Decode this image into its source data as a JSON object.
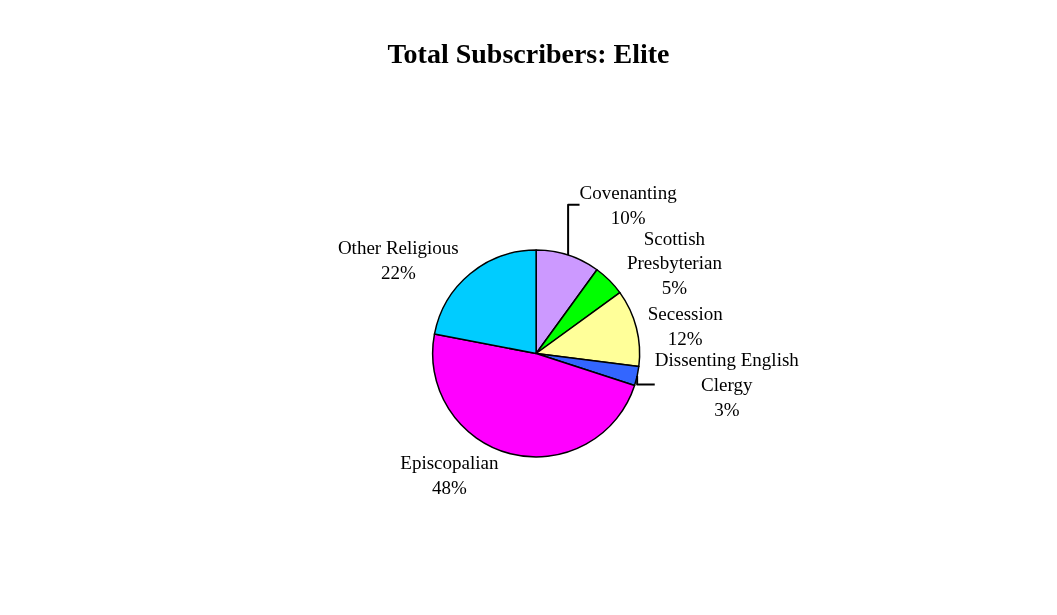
{
  "chart_data": {
    "type": "pie",
    "title": "Total Subscribers: Elite",
    "categories": [
      "Covenanting",
      "Scottish Presbyterian",
      "Secession",
      "Dissenting English Clergy",
      "Episcopalian",
      "Other Religious"
    ],
    "values": [
      10,
      5,
      12,
      3,
      48,
      22
    ],
    "value_labels": [
      "10%",
      "5%",
      "12%",
      "3%",
      "48%",
      "22%"
    ],
    "colors": [
      "#cc99ff",
      "#00ff00",
      "#ffff99",
      "#3366ff",
      "#ff00ff",
      "#00ccff"
    ],
    "legend": false
  }
}
